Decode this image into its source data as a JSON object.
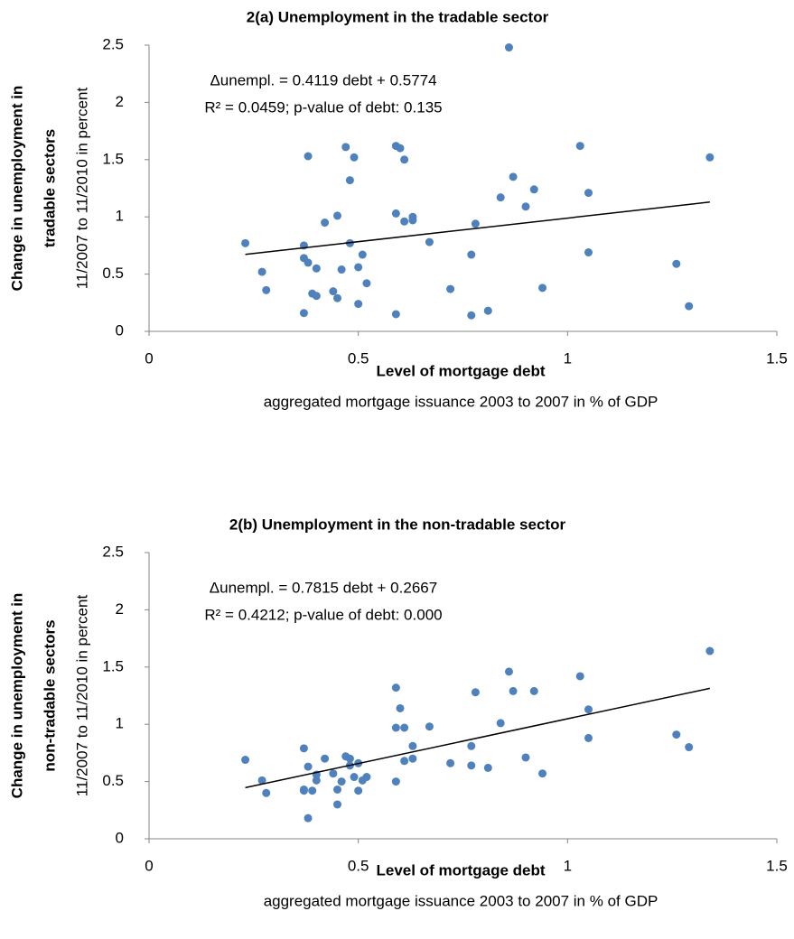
{
  "chart_data": [
    {
      "type": "scatter",
      "title": "2(a) Unemployment in the tradable sector",
      "x_label": "Level of mortgage debt",
      "x_sublabel": "aggregated mortgage issuance 2003 to 2007 in % of GDP",
      "y_label": [
        "Change in unemployment in",
        "tradable sectors"
      ],
      "y_sublabel": "11/2007 to 11/2010 in percent",
      "annotations": [
        "Δunempl. = 0.4119 debt + 0.5774",
        "R² = 0.0459; p-value of debt: 0.135"
      ],
      "color": "#4f81bd",
      "x": [
        0.23,
        0.27,
        0.28,
        0.37,
        0.37,
        0.37,
        0.38,
        0.38,
        0.39,
        0.4,
        0.4,
        0.42,
        0.44,
        0.45,
        0.45,
        0.46,
        0.47,
        0.48,
        0.48,
        0.49,
        0.5,
        0.5,
        0.51,
        0.52,
        0.59,
        0.59,
        0.59,
        0.6,
        0.61,
        0.61,
        0.63,
        0.63,
        0.67,
        0.72,
        0.77,
        0.77,
        0.78,
        0.81,
        0.84,
        0.86,
        0.87,
        0.9,
        0.92,
        0.94,
        1.03,
        1.05,
        1.05,
        1.26,
        1.29,
        1.34
      ],
      "y": [
        0.77,
        0.52,
        0.36,
        0.75,
        0.64,
        0.16,
        0.6,
        1.53,
        0.33,
        0.31,
        0.55,
        0.95,
        0.35,
        1.01,
        0.29,
        0.54,
        1.61,
        0.77,
        1.32,
        1.52,
        0.56,
        0.24,
        0.67,
        0.42,
        1.62,
        1.03,
        0.15,
        1.6,
        1.5,
        0.96,
        1.0,
        0.97,
        0.78,
        0.37,
        0.67,
        0.14,
        0.94,
        0.18,
        1.17,
        2.48,
        1.35,
        1.09,
        1.24,
        0.38,
        1.62,
        1.21,
        0.69,
        0.59,
        0.22,
        1.52
      ],
      "trendline": {
        "slope": 0.4119,
        "intercept": 0.5774,
        "color": "#000000"
      },
      "xlim": [
        0,
        1.5
      ],
      "xticks": [
        0,
        0.5,
        1,
        1.5
      ],
      "ylim": [
        0,
        2.5
      ],
      "yticks": [
        0,
        0.5,
        1,
        1.5,
        2,
        2.5
      ],
      "grid": false
    },
    {
      "type": "scatter",
      "title": "2(b) Unemployment in the non-tradable sector",
      "x_label": "Level of mortgage debt",
      "x_sublabel": "aggregated mortgage issuance 2003 to 2007 in % of GDP",
      "y_label": [
        "Change in unemployment in",
        "non-tradable sectors"
      ],
      "y_sublabel": "11/2007 to 11/2010 in percent",
      "annotations": [
        "Δunempl. = 0.7815 debt + 0.2667",
        "R² = 0.4212; p-value of debt: 0.000"
      ],
      "color": "#4f81bd",
      "x": [
        0.23,
        0.27,
        0.28,
        0.37,
        0.37,
        0.37,
        0.38,
        0.38,
        0.39,
        0.4,
        0.4,
        0.42,
        0.44,
        0.45,
        0.45,
        0.46,
        0.47,
        0.48,
        0.48,
        0.49,
        0.5,
        0.5,
        0.51,
        0.52,
        0.59,
        0.59,
        0.59,
        0.6,
        0.61,
        0.61,
        0.63,
        0.63,
        0.67,
        0.72,
        0.77,
        0.77,
        0.78,
        0.81,
        0.84,
        0.86,
        0.87,
        0.9,
        0.92,
        0.94,
        1.03,
        1.05,
        1.05,
        1.26,
        1.29,
        1.34
      ],
      "y": [
        0.69,
        0.51,
        0.4,
        0.79,
        0.43,
        0.42,
        0.63,
        0.18,
        0.42,
        0.56,
        0.51,
        0.7,
        0.57,
        0.3,
        0.43,
        0.5,
        0.72,
        0.7,
        0.64,
        0.54,
        0.42,
        0.66,
        0.51,
        0.54,
        1.32,
        0.97,
        0.5,
        1.14,
        0.97,
        0.68,
        0.81,
        0.7,
        0.98,
        0.66,
        0.81,
        0.64,
        1.28,
        0.62,
        1.01,
        1.46,
        1.29,
        0.71,
        1.29,
        0.57,
        1.42,
        1.13,
        0.88,
        0.91,
        0.8,
        1.64
      ],
      "trendline": {
        "slope": 0.7815,
        "intercept": 0.2667,
        "color": "#000000"
      },
      "xlim": [
        0,
        1.5
      ],
      "xticks": [
        0,
        0.5,
        1,
        1.5
      ],
      "ylim": [
        0,
        2.5
      ],
      "yticks": [
        0,
        0.5,
        1,
        1.5,
        2,
        2.5
      ],
      "grid": false
    }
  ]
}
